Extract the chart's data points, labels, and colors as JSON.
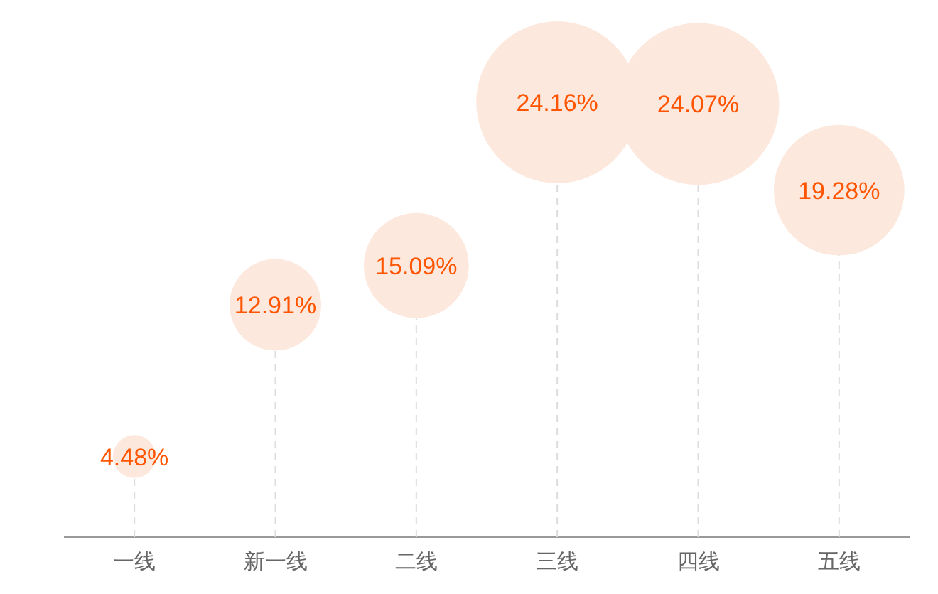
{
  "chart_data": {
    "type": "bubble",
    "categories": [
      "一线",
      "新一线",
      "二线",
      "三线",
      "四线",
      "五线"
    ],
    "values": [
      4.48,
      12.91,
      15.09,
      24.16,
      24.07,
      19.28
    ],
    "sizes": [
      0.07,
      0.32,
      0.42,
      1,
      1,
      0.65
    ],
    "value_labels": [
      "4.48%",
      "12.91%",
      "15.09%",
      "24.16%",
      "24.07%",
      "19.28%"
    ],
    "color": "#fde8de",
    "line_style": "dashed",
    "grid": "x"
  }
}
